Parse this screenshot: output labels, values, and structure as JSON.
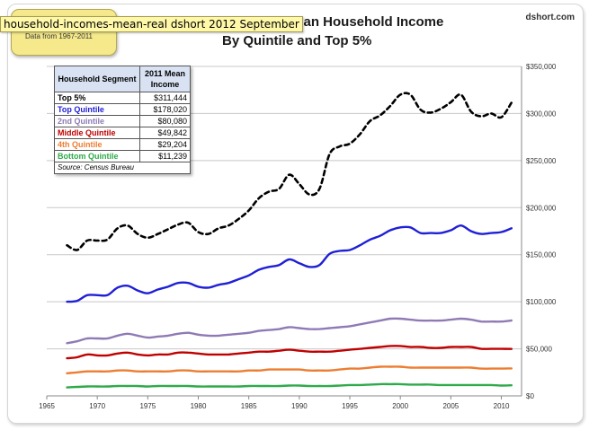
{
  "tooltip": "household-incomes-mean-real dshort 2012 September",
  "badge_note": "Data from 1967-2011",
  "title_line1": "ed) Mean Household Income",
  "title_line2": "By Quintile and Top 5%",
  "brand": "dshort.com",
  "table": {
    "header_segment": "Household Segment",
    "header_value": "2011 Mean Income",
    "rows": [
      {
        "segment": "Top 5%",
        "value": "$311,444",
        "color": "#000000"
      },
      {
        "segment": "Top Quintile",
        "value": "$178,020",
        "color": "#1f1fd6"
      },
      {
        "segment": "2nd Quintile",
        "value": "$80,080",
        "color": "#8e7bb5"
      },
      {
        "segment": "Middle Quintile",
        "value": "$49,842",
        "color": "#c00000"
      },
      {
        "segment": "4th Quintile",
        "value": "$29,204",
        "color": "#ed7d31"
      },
      {
        "segment": "Bottom Quintile",
        "value": "$11,239",
        "color": "#2eaa4a"
      }
    ],
    "source": "Source: Census Bureau"
  },
  "chart_data": {
    "type": "line",
    "x": [
      1967,
      1968,
      1969,
      1970,
      1971,
      1972,
      1973,
      1974,
      1975,
      1976,
      1977,
      1978,
      1979,
      1980,
      1981,
      1982,
      1983,
      1984,
      1985,
      1986,
      1987,
      1988,
      1989,
      1990,
      1991,
      1992,
      1993,
      1994,
      1995,
      1996,
      1997,
      1998,
      1999,
      2000,
      2001,
      2002,
      2003,
      2004,
      2005,
      2006,
      2007,
      2008,
      2009,
      2010,
      2011
    ],
    "xlim": [
      1965,
      2012
    ],
    "ylim": [
      0,
      350000
    ],
    "xticks": [
      "1965",
      "1970",
      "1975",
      "1980",
      "1985",
      "1990",
      "1995",
      "2000",
      "2005",
      "2010"
    ],
    "yticks": [
      "$0",
      "$50,000",
      "$100,000",
      "$150,000",
      "$200,000",
      "$250,000",
      "$300,000",
      "$350,000"
    ],
    "series": [
      {
        "name": "Top 5%",
        "color": "#000000",
        "dashed": true,
        "values": [
          160000,
          155000,
          165000,
          165000,
          166000,
          178000,
          181000,
          172000,
          168000,
          172000,
          177000,
          182000,
          184000,
          174000,
          172000,
          178000,
          181000,
          188000,
          197000,
          210000,
          217000,
          220000,
          235000,
          225000,
          214000,
          220000,
          257000,
          265000,
          268000,
          278000,
          292000,
          298000,
          308000,
          320000,
          320000,
          304000,
          301000,
          305000,
          312000,
          320000,
          302000,
          297000,
          300000,
          296000,
          311444
        ]
      },
      {
        "name": "Top Quintile",
        "color": "#1f1fd6",
        "dashed": false,
        "values": [
          100000,
          101000,
          107000,
          107000,
          107000,
          115000,
          117000,
          112000,
          109000,
          113000,
          116000,
          120000,
          120000,
          116000,
          115000,
          118000,
          120000,
          124000,
          128000,
          134000,
          137000,
          139000,
          145000,
          141000,
          137000,
          139000,
          151000,
          154000,
          155000,
          160000,
          166000,
          170000,
          176000,
          179000,
          179000,
          173000,
          173000,
          173000,
          176000,
          181000,
          175000,
          172000,
          173000,
          174000,
          178020
        ]
      },
      {
        "name": "2nd Quintile",
        "color": "#8e7bb5",
        "dashed": false,
        "values": [
          56000,
          58000,
          61000,
          61000,
          61000,
          64000,
          66000,
          64000,
          62000,
          63000,
          64000,
          66000,
          67000,
          65000,
          64000,
          64000,
          65000,
          66000,
          67000,
          69000,
          70000,
          71000,
          73000,
          72000,
          71000,
          71000,
          72000,
          73000,
          74000,
          76000,
          78000,
          80000,
          82000,
          82000,
          81000,
          80000,
          80000,
          80000,
          81000,
          82000,
          81000,
          79000,
          79000,
          79000,
          80080
        ]
      },
      {
        "name": "Middle Quintile",
        "color": "#c00000",
        "dashed": false,
        "values": [
          40000,
          41000,
          44000,
          43000,
          43000,
          45000,
          46000,
          44000,
          43000,
          44000,
          44000,
          46000,
          46000,
          45000,
          44000,
          44000,
          44000,
          45000,
          46000,
          47000,
          47000,
          48000,
          49000,
          48000,
          47000,
          47000,
          47000,
          48000,
          49000,
          50000,
          51000,
          52000,
          53000,
          53000,
          52000,
          52000,
          51000,
          51000,
          52000,
          52000,
          52000,
          50000,
          50000,
          50000,
          49842
        ]
      },
      {
        "name": "4th Quintile",
        "color": "#ed7d31",
        "dashed": false,
        "values": [
          24000,
          25000,
          26000,
          26000,
          26000,
          27000,
          27000,
          26000,
          26000,
          26000,
          26000,
          27000,
          27000,
          26000,
          26000,
          26000,
          26000,
          26000,
          27000,
          27000,
          28000,
          28000,
          28000,
          28000,
          27000,
          27000,
          27000,
          28000,
          29000,
          29000,
          30000,
          31000,
          31000,
          31000,
          30000,
          30000,
          30000,
          30000,
          30000,
          30000,
          30000,
          29000,
          29000,
          29000,
          29204
        ]
      },
      {
        "name": "Bottom Quintile",
        "color": "#2eaa4a",
        "dashed": false,
        "values": [
          9000,
          9500,
          10000,
          10000,
          10000,
          10500,
          10500,
          10500,
          10000,
          10500,
          10500,
          10500,
          10500,
          10000,
          10000,
          10000,
          10000,
          10000,
          10500,
          10500,
          10500,
          10500,
          11000,
          11000,
          10500,
          10500,
          10500,
          11000,
          11500,
          11500,
          12000,
          12500,
          12500,
          12500,
          12000,
          12000,
          12000,
          11500,
          11500,
          11500,
          11500,
          11500,
          11500,
          11000,
          11239
        ]
      }
    ]
  }
}
